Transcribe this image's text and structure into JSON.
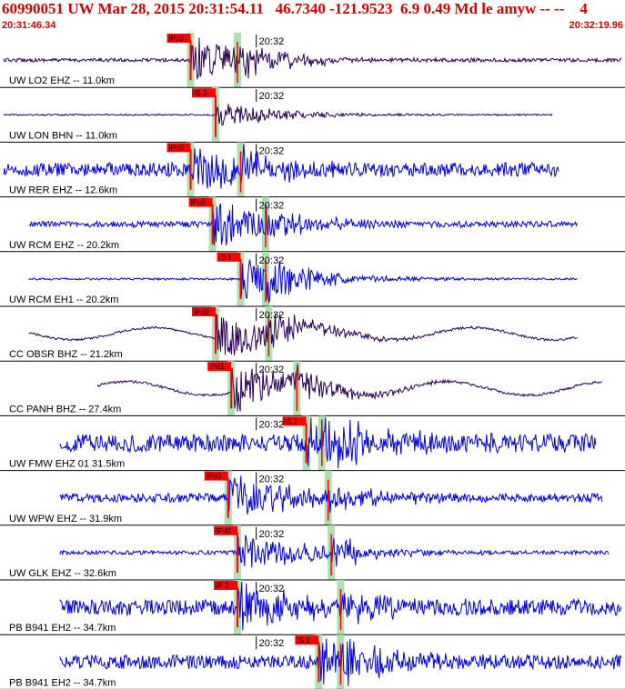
{
  "header": {
    "title": "60990051 UW Mar 28, 2015 20:31:54.11   46.7340 -121.9523  6.9 0.49 Md le amyw -- --    4",
    "time_start": "20:31:46.34",
    "time_end": "20:32:19.96"
  },
  "colors": {
    "trace_blue": "#0000dd",
    "trace_dark": "#2a0055",
    "pick_red": "#ff0000",
    "theory_green": "#b0e0b0",
    "title_red": "#cc0000"
  },
  "chart_data": {
    "type": "line",
    "title": "60990051 UW Mar 28, 2015 20:31:54.11   46.7340 -121.9523  6.9 0.49 Md le amyw -- --    4",
    "x_range": [
      "20:31:46.34",
      "20:32:19.96"
    ],
    "minute_tick_label": "20:32",
    "traces": [
      {
        "label": "UW LO2 EHZ -- 11.0km",
        "dist_km": 11.0,
        "color": "dark",
        "tstart": 0.0,
        "tend": 1.0,
        "amp": 0.18,
        "pick_label": "IPc0",
        "pick_t": 0.305,
        "s_t": 0.38,
        "event_amp": 1.0,
        "noise": "low"
      },
      {
        "label": "UW LON BHN -- 11.0km",
        "dist_km": 11.0,
        "color": "dark",
        "tstart": 0.0,
        "tend": 0.89,
        "amp": 0.08,
        "pick_label": "IS 0",
        "pick_t": 0.345,
        "s_t": 0.345,
        "event_amp": 0.55,
        "noise": "low"
      },
      {
        "label": "UW RER EHZ -- 12.6km",
        "dist_km": 12.6,
        "color": "blue",
        "tstart": 0.0,
        "tend": 0.9,
        "amp": 0.35,
        "pick_label": "IPc0",
        "pick_t": 0.305,
        "s_t": 0.385,
        "event_amp": 1.0,
        "noise": "high"
      },
      {
        "label": "UW RCM EHZ -- 20.2km",
        "dist_km": 20.2,
        "color": "blue",
        "tstart": 0.04,
        "tend": 0.93,
        "amp": 0.2,
        "pick_label": "IPc0",
        "pick_t": 0.34,
        "s_t": 0.425,
        "event_amp": 1.0,
        "noise": "mid"
      },
      {
        "label": "UW RCM EH1 -- 20.2km",
        "dist_km": 20.2,
        "color": "blue",
        "tstart": 0.04,
        "tend": 0.93,
        "amp": 0.1,
        "pick_label": "IS 1",
        "pick_t": 0.385,
        "s_t": 0.425,
        "event_amp": 0.9,
        "noise": "low"
      },
      {
        "label": "CC OBSR BHZ -- 21.2km",
        "dist_km": 21.2,
        "color": "dark",
        "tstart": 0.04,
        "tend": 0.93,
        "amp": 0.35,
        "pick_label": "IPd0",
        "pick_t": 0.345,
        "s_t": 0.43,
        "event_amp": 1.0,
        "noise": "wave"
      },
      {
        "label": "CC PANH BHZ -- 27.4km",
        "dist_km": 27.4,
        "color": "dark",
        "tstart": 0.15,
        "tend": 0.97,
        "amp": 0.4,
        "pick_label": "IPd1",
        "pick_t": 0.37,
        "s_t": 0.475,
        "event_amp": 1.0,
        "noise": "wave"
      },
      {
        "label": "UW FMW EHZ 01 31.5km",
        "dist_km": 31.5,
        "color": "blue",
        "tstart": 0.09,
        "tend": 0.96,
        "amp": 0.45,
        "pick_label": "IS 2",
        "pick_t": 0.49,
        "s_t": 0.515,
        "event_amp": 1.0,
        "noise": "high"
      },
      {
        "label": "UW WPW EHZ -- 31.9km",
        "dist_km": 31.9,
        "color": "blue",
        "tstart": 0.09,
        "tend": 0.97,
        "amp": 0.3,
        "pick_label": "IPd0",
        "pick_t": 0.365,
        "s_t": 0.525,
        "event_amp": 1.0,
        "noise": "mid"
      },
      {
        "label": "UW GLK EHZ -- 32.6km",
        "dist_km": 32.6,
        "color": "blue",
        "tstart": 0.09,
        "tend": 0.98,
        "amp": 0.2,
        "pick_label": "IPd0",
        "pick_t": 0.38,
        "s_t": 0.53,
        "event_amp": 1.0,
        "noise": "low"
      },
      {
        "label": "PB B941 EH2 -- 34.7km",
        "dist_km": 34.7,
        "color": "blue",
        "tstart": 0.09,
        "tend": 1.0,
        "amp": 0.4,
        "pick_label": "IP 2",
        "pick_t": 0.38,
        "s_t": 0.545,
        "event_amp": 1.0,
        "noise": "high"
      },
      {
        "label": "PB B941 EH2 -- 34.7km",
        "dist_km": 34.7,
        "color": "blue",
        "tstart": 0.09,
        "tend": 1.0,
        "amp": 0.35,
        "pick_label": "IS 1",
        "pick_t": 0.51,
        "s_t": 0.545,
        "event_amp": 1.0,
        "noise": "high"
      }
    ]
  }
}
